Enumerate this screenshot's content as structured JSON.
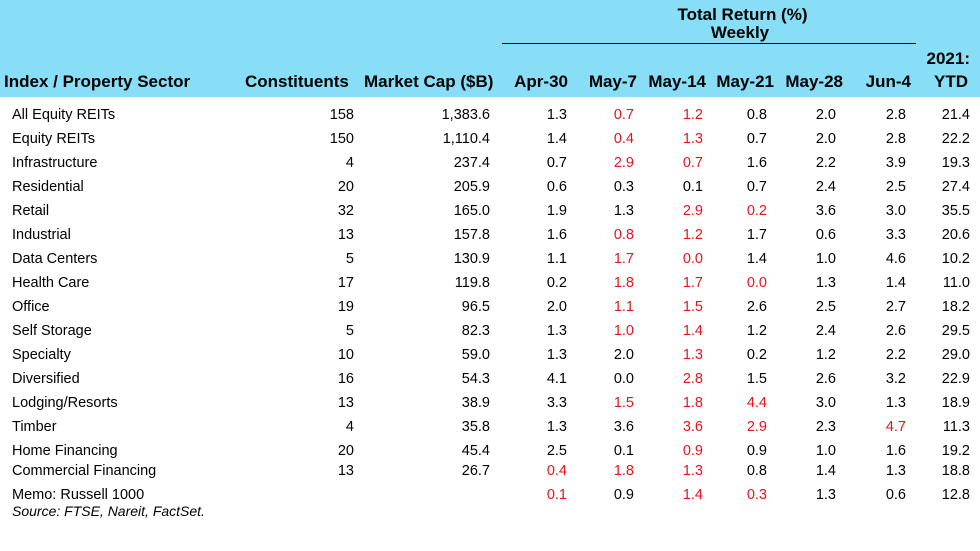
{
  "header": {
    "group_title_1": "Total Return (%)",
    "group_title_2": "Weekly",
    "col_name": "Index / Property Sector",
    "col_constituents": "Constituents",
    "col_mcap": "Market Cap ($B)",
    "col_ytd_1": "2021:",
    "col_ytd_2": "YTD"
  },
  "colors": {
    "header_bg": "#87def6",
    "highlight": "#e8141b"
  },
  "chart_data": {
    "type": "table",
    "columns": [
      "Index / Property Sector",
      "Constituents",
      "Market Cap ($B)",
      "Apr-30",
      "May-7",
      "May-14",
      "May-21",
      "May-28",
      "Jun-4",
      "2021: YTD"
    ],
    "weeks": [
      "Apr-30",
      "May-7",
      "May-14",
      "May-21",
      "May-28",
      "Jun-4"
    ],
    "rows": [
      {
        "name": "All Equity REITs",
        "constituents": "158",
        "mcap": "1,383.6",
        "weekly": [
          "1.3",
          "0.7",
          "1.2",
          "0.8",
          "2.0",
          "2.8"
        ],
        "red": [
          false,
          true,
          true,
          false,
          false,
          false
        ],
        "ytd": "21.4"
      },
      {
        "name": "Equity REITs",
        "constituents": "150",
        "mcap": "1,110.4",
        "weekly": [
          "1.4",
          "0.4",
          "1.3",
          "0.7",
          "2.0",
          "2.8"
        ],
        "red": [
          false,
          true,
          true,
          false,
          false,
          false
        ],
        "ytd": "22.2"
      },
      {
        "name": "Infrastructure",
        "constituents": "4",
        "mcap": "237.4",
        "weekly": [
          "0.7",
          "2.9",
          "0.7",
          "1.6",
          "2.2",
          "3.9"
        ],
        "red": [
          false,
          true,
          true,
          false,
          false,
          false
        ],
        "ytd": "19.3"
      },
      {
        "name": "Residential",
        "constituents": "20",
        "mcap": "205.9",
        "weekly": [
          "0.6",
          "0.3",
          "0.1",
          "0.7",
          "2.4",
          "2.5"
        ],
        "red": [
          false,
          false,
          false,
          false,
          false,
          false
        ],
        "ytd": "27.4"
      },
      {
        "name": "Retail",
        "constituents": "32",
        "mcap": "165.0",
        "weekly": [
          "1.9",
          "1.3",
          "2.9",
          "0.2",
          "3.6",
          "3.0"
        ],
        "red": [
          false,
          false,
          true,
          true,
          false,
          false
        ],
        "ytd": "35.5"
      },
      {
        "name": "Industrial",
        "constituents": "13",
        "mcap": "157.8",
        "weekly": [
          "1.6",
          "0.8",
          "1.2",
          "1.7",
          "0.6",
          "3.3"
        ],
        "red": [
          false,
          true,
          true,
          false,
          false,
          false
        ],
        "ytd": "20.6"
      },
      {
        "name": "Data Centers",
        "constituents": "5",
        "mcap": "130.9",
        "weekly": [
          "1.1",
          "1.7",
          "0.0",
          "1.4",
          "1.0",
          "4.6"
        ],
        "red": [
          false,
          true,
          true,
          false,
          false,
          false
        ],
        "ytd": "10.2"
      },
      {
        "name": "Health Care",
        "constituents": "17",
        "mcap": "119.8",
        "weekly": [
          "0.2",
          "1.8",
          "1.7",
          "0.0",
          "1.3",
          "1.4"
        ],
        "red": [
          false,
          true,
          true,
          true,
          false,
          false
        ],
        "ytd": "11.0"
      },
      {
        "name": "Office",
        "constituents": "19",
        "mcap": "96.5",
        "weekly": [
          "2.0",
          "1.1",
          "1.5",
          "2.6",
          "2.5",
          "2.7"
        ],
        "red": [
          false,
          true,
          true,
          false,
          false,
          false
        ],
        "ytd": "18.2"
      },
      {
        "name": "Self Storage",
        "constituents": "5",
        "mcap": "82.3",
        "weekly": [
          "1.3",
          "1.0",
          "1.4",
          "1.2",
          "2.4",
          "2.6"
        ],
        "red": [
          false,
          true,
          true,
          false,
          false,
          false
        ],
        "ytd": "29.5"
      },
      {
        "name": "Specialty",
        "constituents": "10",
        "mcap": "59.0",
        "weekly": [
          "1.3",
          "2.0",
          "1.3",
          "0.2",
          "1.2",
          "2.2"
        ],
        "red": [
          false,
          false,
          true,
          false,
          false,
          false
        ],
        "ytd": "29.0"
      },
      {
        "name": "Diversified",
        "constituents": "16",
        "mcap": "54.3",
        "weekly": [
          "4.1",
          "0.0",
          "2.8",
          "1.5",
          "2.6",
          "3.2"
        ],
        "red": [
          false,
          false,
          true,
          false,
          false,
          false
        ],
        "ytd": "22.9"
      },
      {
        "name": "Lodging/Resorts",
        "constituents": "13",
        "mcap": "38.9",
        "weekly": [
          "3.3",
          "1.5",
          "1.8",
          "4.4",
          "3.0",
          "1.3"
        ],
        "red": [
          false,
          true,
          true,
          true,
          false,
          false
        ],
        "ytd": "18.9"
      },
      {
        "name": "Timber",
        "constituents": "4",
        "mcap": "35.8",
        "weekly": [
          "1.3",
          "3.6",
          "3.6",
          "2.9",
          "2.3",
          "4.7"
        ],
        "red": [
          false,
          false,
          true,
          true,
          false,
          true
        ],
        "ytd": "11.3"
      },
      {
        "name": "Home Financing",
        "constituents": "20",
        "mcap": "45.4",
        "weekly": [
          "2.5",
          "0.1",
          "0.9",
          "0.9",
          "1.0",
          "1.6"
        ],
        "red": [
          false,
          false,
          true,
          false,
          false,
          false
        ],
        "ytd": "19.2"
      },
      {
        "name": "Commercial Financing",
        "constituents": "13",
        "mcap": "26.7",
        "weekly": [
          "0.4",
          "1.8",
          "1.3",
          "0.8",
          "1.4",
          "1.3"
        ],
        "red": [
          true,
          true,
          true,
          false,
          false,
          false
        ],
        "ytd": "18.8"
      },
      {
        "name": "Memo: Russell 1000",
        "constituents": "",
        "mcap": "",
        "weekly": [
          "0.1",
          "0.9",
          "1.4",
          "0.3",
          "1.3",
          "0.6"
        ],
        "red": [
          true,
          false,
          true,
          true,
          false,
          false
        ],
        "ytd": "12.8"
      }
    ]
  },
  "source": "Source: FTSE, Nareit, FactSet."
}
